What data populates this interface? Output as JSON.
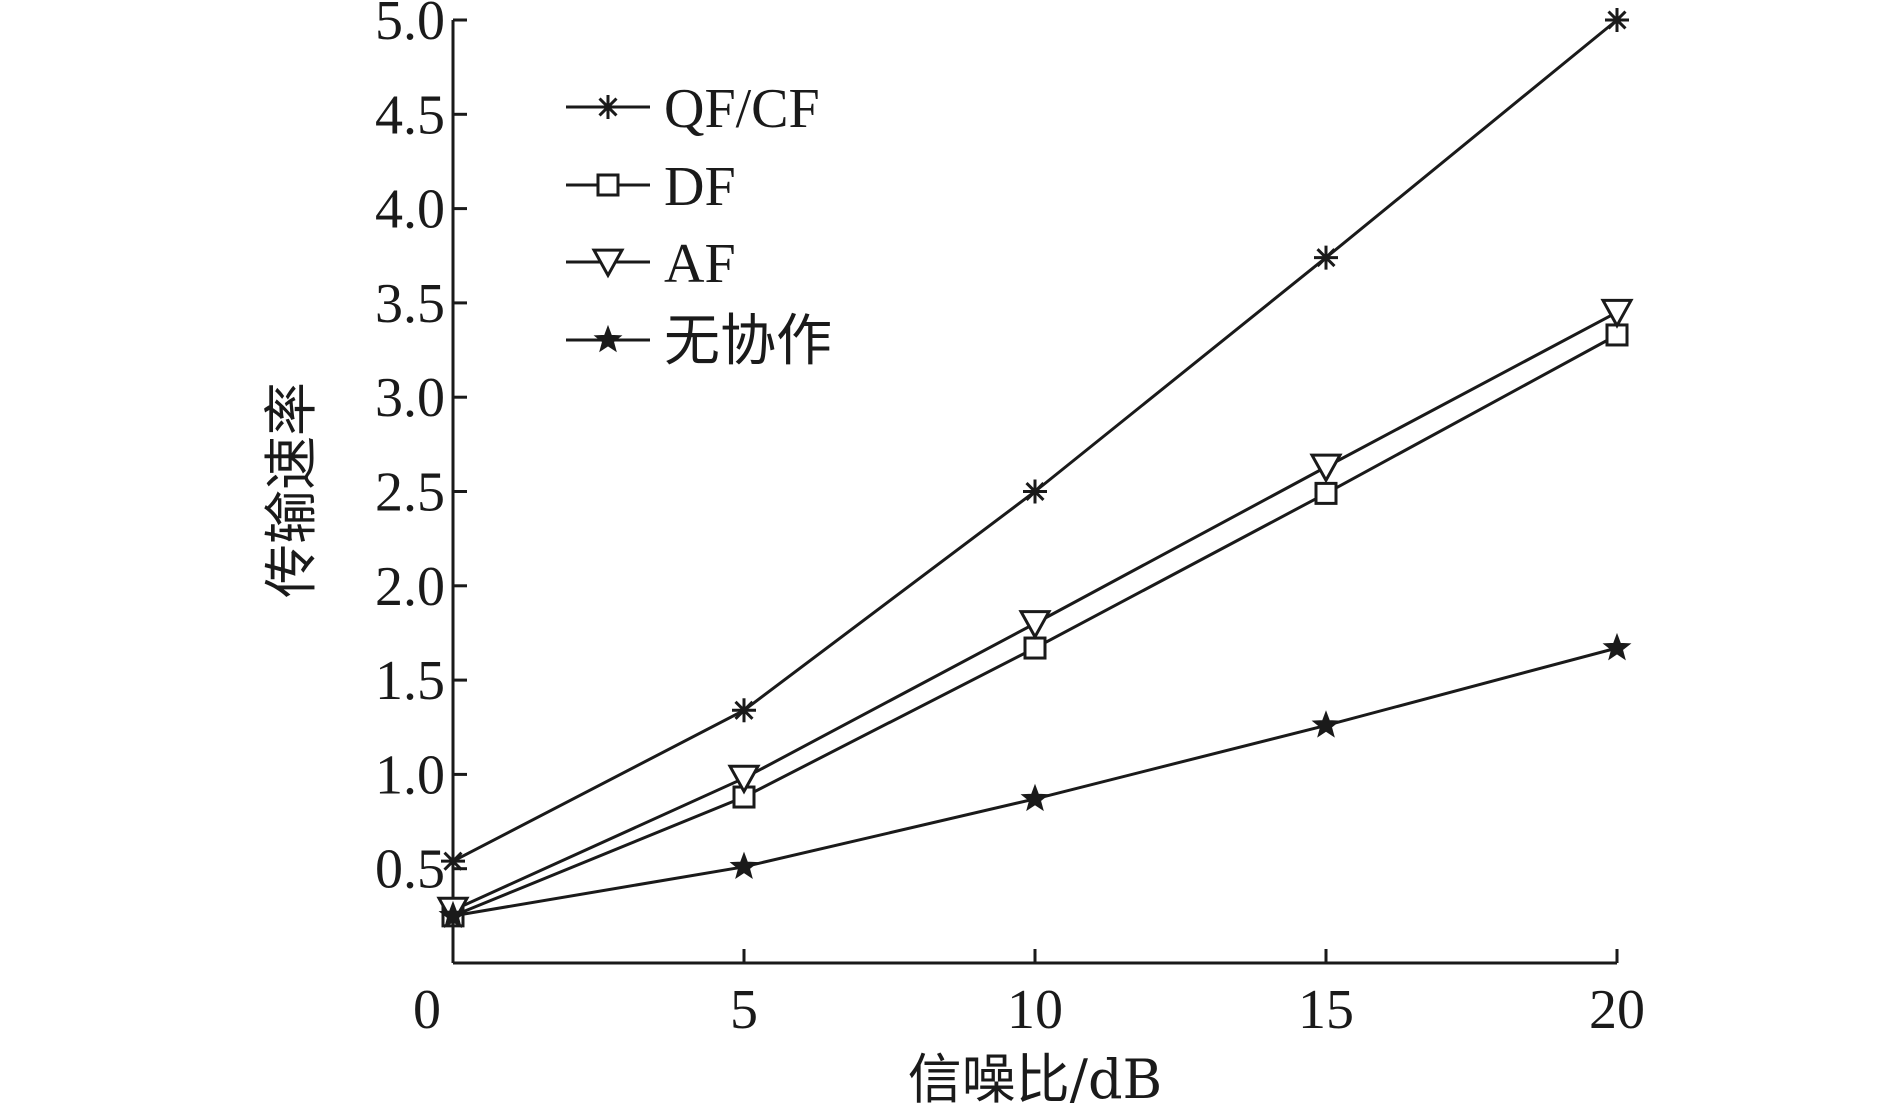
{
  "chart_data": {
    "type": "line",
    "title": "",
    "xlabel": "信噪比/dB",
    "ylabel": "传输速率",
    "x": [
      0,
      5,
      10,
      15,
      20
    ],
    "xlim": [
      0,
      20
    ],
    "ylim": [
      0,
      5.0
    ],
    "xticks": [
      "0",
      "5",
      "10",
      "15",
      "20"
    ],
    "yticks": [
      "0.5",
      "1.0",
      "1.5",
      "2.0",
      "2.5",
      "3.0",
      "3.5",
      "4.0",
      "4.5",
      "5.0"
    ],
    "grid": false,
    "legend_position": "top-left",
    "series": [
      {
        "name": "QF/CF",
        "marker": "asterisk",
        "values": [
          0.54,
          1.34,
          2.5,
          3.74,
          5.0
        ]
      },
      {
        "name": "DF",
        "marker": "square",
        "values": [
          0.25,
          0.88,
          1.67,
          2.49,
          3.33
        ]
      },
      {
        "name": "AF",
        "marker": "triangle-down",
        "values": [
          0.28,
          0.98,
          1.8,
          2.63,
          3.45
        ]
      },
      {
        "name": "无协作",
        "marker": "star",
        "values": [
          0.25,
          0.51,
          0.87,
          1.26,
          1.67
        ]
      }
    ]
  },
  "colors": {
    "line": "#1a1a1a",
    "background": "#ffffff"
  }
}
